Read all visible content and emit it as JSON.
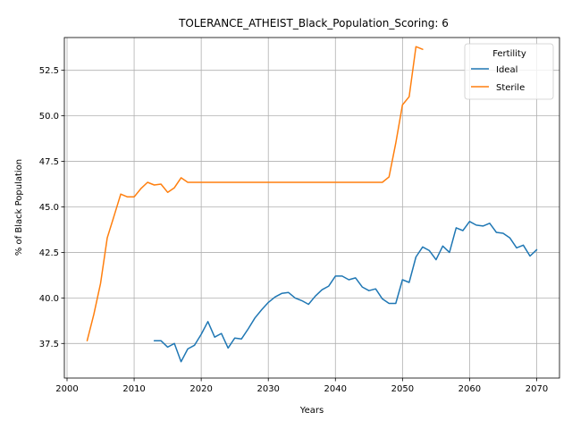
{
  "chart_data": {
    "type": "line",
    "title": "TOLERANCE_ATHEIST_Black_Population_Scoring: 6",
    "xlabel": "Years",
    "ylabel": "% of Black Population",
    "xlim": [
      1999.6,
      2073.4
    ],
    "ylim": [
      35.6,
      54.3
    ],
    "xticks": [
      2000,
      2010,
      2020,
      2030,
      2040,
      2050,
      2060,
      2070
    ],
    "yticks": [
      37.5,
      40.0,
      42.5,
      45.0,
      47.5,
      50.0,
      52.5
    ],
    "grid": true,
    "legend": {
      "title": "Fertility",
      "placement": "top-right"
    },
    "series": [
      {
        "name": "Ideal",
        "color": "#1f77b4",
        "x": [
          2013,
          2014,
          2015,
          2016,
          2017,
          2018,
          2019,
          2020,
          2021,
          2022,
          2023,
          2024,
          2025,
          2026,
          2027,
          2028,
          2029,
          2030,
          2031,
          2032,
          2033,
          2034,
          2035,
          2036,
          2037,
          2038,
          2039,
          2040,
          2041,
          2042,
          2043,
          2044,
          2045,
          2046,
          2047,
          2048,
          2049,
          2050,
          2051,
          2052,
          2053,
          2054,
          2055,
          2056,
          2057,
          2058,
          2059,
          2060,
          2061,
          2062,
          2063,
          2064,
          2065,
          2066,
          2067,
          2068,
          2069,
          2070
        ],
        "values": [
          37.65,
          37.65,
          37.3,
          37.5,
          36.5,
          37.2,
          37.4,
          38.0,
          38.7,
          37.85,
          38.05,
          37.25,
          37.8,
          37.75,
          38.3,
          38.9,
          39.35,
          39.75,
          40.05,
          40.25,
          40.3,
          40.0,
          39.85,
          39.65,
          40.1,
          40.45,
          40.65,
          41.2,
          41.2,
          41.0,
          41.1,
          40.6,
          40.4,
          40.5,
          39.95,
          39.7,
          39.7,
          41.0,
          40.85,
          42.25,
          42.8,
          42.6,
          42.1,
          42.85,
          42.5,
          43.85,
          43.7,
          44.2,
          44.0,
          43.95,
          44.1,
          43.6,
          43.55,
          43.3,
          42.75,
          42.9,
          42.3,
          42.65
        ]
      },
      {
        "name": "Sterile",
        "color": "#ff7f0e",
        "x": [
          2003,
          2004,
          2005,
          2006,
          2007,
          2008,
          2009,
          2010,
          2011,
          2012,
          2013,
          2014,
          2015,
          2016,
          2017,
          2018,
          2019,
          2020,
          2021,
          2022,
          2023,
          2024,
          2025,
          2026,
          2027,
          2028,
          2029,
          2030,
          2031,
          2032,
          2033,
          2034,
          2035,
          2036,
          2037,
          2038,
          2039,
          2040,
          2041,
          2042,
          2043,
          2044,
          2045,
          2046,
          2047,
          2048,
          2049,
          2050,
          2051,
          2052,
          2053
        ],
        "values": [
          37.65,
          39.1,
          40.8,
          43.3,
          44.5,
          45.7,
          45.55,
          45.55,
          46.0,
          46.35,
          46.2,
          46.25,
          45.8,
          46.05,
          46.6,
          46.35,
          46.35,
          46.35,
          46.35,
          46.35,
          46.35,
          46.35,
          46.35,
          46.35,
          46.35,
          46.35,
          46.35,
          46.35,
          46.35,
          46.35,
          46.35,
          46.35,
          46.35,
          46.35,
          46.35,
          46.35,
          46.35,
          46.35,
          46.35,
          46.35,
          46.35,
          46.35,
          46.35,
          46.35,
          46.35,
          46.65,
          48.5,
          50.6,
          51.05,
          53.8,
          53.65
        ]
      }
    ]
  }
}
